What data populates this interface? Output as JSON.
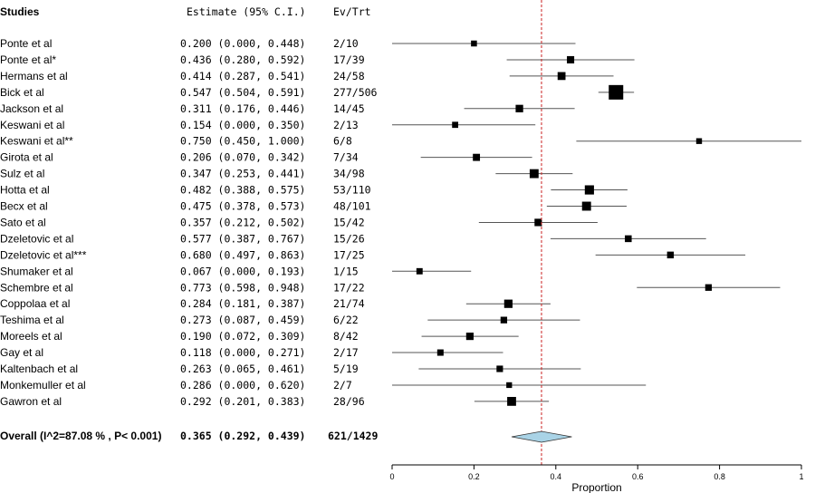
{
  "chart_data": {
    "type": "forest",
    "headers": {
      "studies": "Studies",
      "estimate": "Estimate (95% C.I.)",
      "events": "Ev/Trt"
    },
    "xlabel": "Proportion",
    "xlim": [
      0,
      1
    ],
    "xticks": [
      "0",
      "0.2",
      "0.4",
      "0.6",
      "0.8",
      "1"
    ],
    "xtick_values": [
      0,
      0.2,
      0.4,
      0.6,
      0.8,
      1
    ],
    "reference_line": 0.365,
    "studies": [
      {
        "name": "Ponte et al",
        "est_text": "0.200 (0.000, 0.448)",
        "ev_text": "2/10",
        "est": 0.2,
        "lo": 0.0,
        "hi": 0.448,
        "n": 10
      },
      {
        "name": "Ponte et al*",
        "est_text": "0.436 (0.280, 0.592)",
        "ev_text": "17/39",
        "est": 0.436,
        "lo": 0.28,
        "hi": 0.592,
        "n": 39
      },
      {
        "name": "Hermans et al",
        "est_text": "0.414 (0.287, 0.541)",
        "ev_text": "24/58",
        "est": 0.414,
        "lo": 0.287,
        "hi": 0.541,
        "n": 58
      },
      {
        "name": "Bick et al",
        "est_text": "0.547 (0.504, 0.591)",
        "ev_text": "277/506",
        "est": 0.547,
        "lo": 0.504,
        "hi": 0.591,
        "n": 506
      },
      {
        "name": "Jackson et al",
        "est_text": "0.311 (0.176, 0.446)",
        "ev_text": "14/45",
        "est": 0.311,
        "lo": 0.176,
        "hi": 0.446,
        "n": 45
      },
      {
        "name": "Keswani et al",
        "est_text": "0.154 (0.000, 0.350)",
        "ev_text": "2/13",
        "est": 0.154,
        "lo": 0.0,
        "hi": 0.35,
        "n": 13
      },
      {
        "name": "Keswani et al**",
        "est_text": "0.750 (0.450, 1.000)",
        "ev_text": "6/8",
        "est": 0.75,
        "lo": 0.45,
        "hi": 1.0,
        "n": 8
      },
      {
        "name": "Girota et al",
        "est_text": "0.206 (0.070, 0.342)",
        "ev_text": "7/34",
        "est": 0.206,
        "lo": 0.07,
        "hi": 0.342,
        "n": 34
      },
      {
        "name": "Sulz et al",
        "est_text": "0.347 (0.253, 0.441)",
        "ev_text": "34/98",
        "est": 0.347,
        "lo": 0.253,
        "hi": 0.441,
        "n": 98
      },
      {
        "name": "Hotta et al",
        "est_text": "0.482 (0.388, 0.575)",
        "ev_text": "53/110",
        "est": 0.482,
        "lo": 0.388,
        "hi": 0.575,
        "n": 110
      },
      {
        "name": "Becx et al",
        "est_text": "0.475 (0.378, 0.573)",
        "ev_text": "48/101",
        "est": 0.475,
        "lo": 0.378,
        "hi": 0.573,
        "n": 101
      },
      {
        "name": "Sato et al",
        "est_text": "0.357 (0.212, 0.502)",
        "ev_text": "15/42",
        "est": 0.357,
        "lo": 0.212,
        "hi": 0.502,
        "n": 42
      },
      {
        "name": "Dzeletovic et al",
        "est_text": "0.577 (0.387, 0.767)",
        "ev_text": "15/26",
        "est": 0.577,
        "lo": 0.387,
        "hi": 0.767,
        "n": 26
      },
      {
        "name": "Dzeletovic  et al***",
        "est_text": "0.680 (0.497, 0.863)",
        "ev_text": "17/25",
        "est": 0.68,
        "lo": 0.497,
        "hi": 0.863,
        "n": 25
      },
      {
        "name": "Shumaker et al",
        "est_text": "0.067 (0.000, 0.193)",
        "ev_text": "1/15",
        "est": 0.067,
        "lo": 0.0,
        "hi": 0.193,
        "n": 15
      },
      {
        "name": "Schembre et al",
        "est_text": "0.773 (0.598, 0.948)",
        "ev_text": "17/22",
        "est": 0.773,
        "lo": 0.598,
        "hi": 0.948,
        "n": 22
      },
      {
        "name": "Coppolaa et al",
        "est_text": "0.284 (0.181, 0.387)",
        "ev_text": "21/74",
        "est": 0.284,
        "lo": 0.181,
        "hi": 0.387,
        "n": 74
      },
      {
        "name": "Teshima et al",
        "est_text": "0.273 (0.087, 0.459)",
        "ev_text": "6/22",
        "est": 0.273,
        "lo": 0.087,
        "hi": 0.459,
        "n": 22
      },
      {
        "name": "Moreels et al",
        "est_text": "0.190 (0.072, 0.309)",
        "ev_text": "8/42",
        "est": 0.19,
        "lo": 0.072,
        "hi": 0.309,
        "n": 42
      },
      {
        "name": "Gay et al",
        "est_text": "0.118 (0.000, 0.271)",
        "ev_text": "2/17",
        "est": 0.118,
        "lo": 0.0,
        "hi": 0.271,
        "n": 17
      },
      {
        "name": "Kaltenbach et al",
        "est_text": "0.263 (0.065, 0.461)",
        "ev_text": "5/19",
        "est": 0.263,
        "lo": 0.065,
        "hi": 0.461,
        "n": 19
      },
      {
        "name": "Monkemuller et al",
        "est_text": "0.286 (0.000, 0.620)",
        "ev_text": "2/7",
        "est": 0.286,
        "lo": 0.0,
        "hi": 0.62,
        "n": 7
      },
      {
        "name": "Gawron et al",
        "est_text": "0.292 (0.201, 0.383)",
        "ev_text": "28/96",
        "est": 0.292,
        "lo": 0.201,
        "hi": 0.383,
        "n": 96
      }
    ],
    "overall": {
      "name": "Overall (I^2=87.08 % , P< 0.001)",
      "est_text": "0.365 (0.292, 0.439)",
      "ev_text": "621/1429",
      "est": 0.365,
      "lo": 0.292,
      "hi": 0.439
    },
    "colors": {
      "reference_line": "#cc2222",
      "diamond_fill": "#a9d3e6",
      "marker": "#000000",
      "ci_line": "#555555"
    }
  }
}
